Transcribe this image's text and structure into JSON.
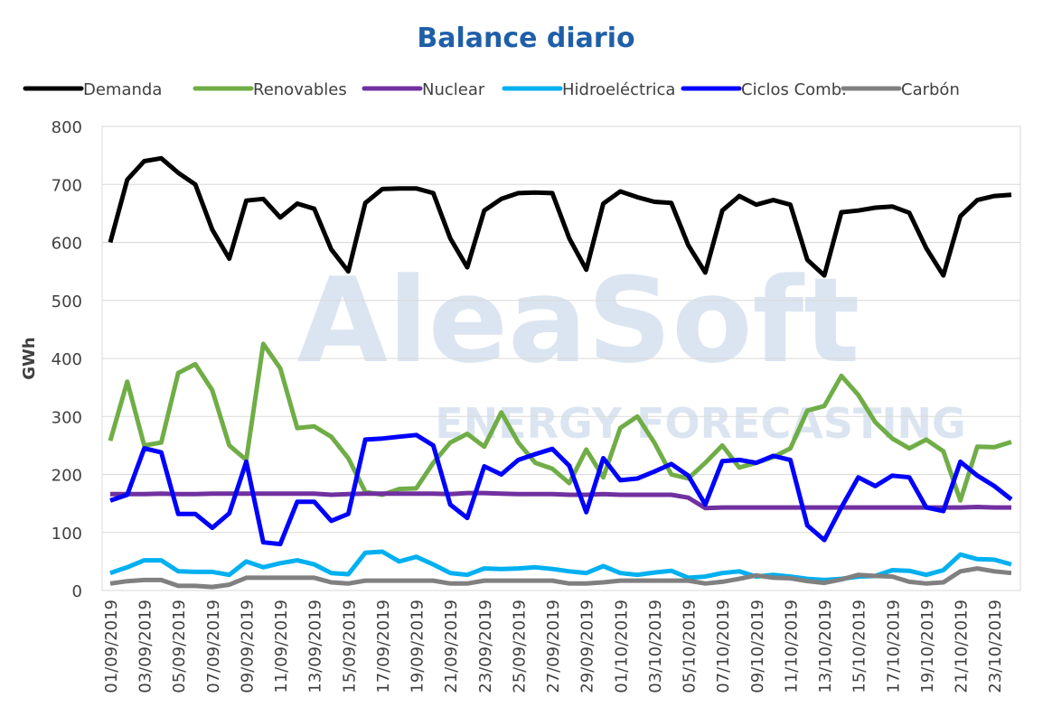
{
  "chart_data": {
    "type": "line",
    "title": "Balance diario",
    "y_label": "GWh",
    "annotations": [
      "AleaSoft",
      "ENERGY FORECASTING"
    ],
    "categories": [
      "01/09/2019",
      null,
      "03/09/2019",
      null,
      "05/09/2019",
      null,
      "07/09/2019",
      null,
      "09/09/2019",
      null,
      "11/09/2019",
      null,
      "13/09/2019",
      null,
      "15/09/2019",
      null,
      "17/09/2019",
      null,
      "19/09/2019",
      null,
      "21/09/2019",
      null,
      "23/09/2019",
      null,
      "25/09/2019",
      null,
      "27/09/2019",
      null,
      "29/09/2019",
      null,
      "01/10/2019",
      null,
      "03/10/2019",
      null,
      "05/10/2019",
      null,
      "07/10/2019",
      null,
      "09/10/2019",
      null,
      "11/10/2019",
      null,
      "13/10/2019",
      null,
      "15/10/2019",
      null,
      "17/10/2019",
      null,
      "19/10/2019",
      null,
      "21/10/2019",
      null,
      "23/10/2019",
      null
    ],
    "series": [
      {
        "name": "Demanda",
        "color": "#000000",
        "values": [
          600,
          708,
          740,
          745,
          720,
          700,
          622,
          572,
          672,
          675,
          643,
          667,
          658,
          588,
          550,
          668,
          692,
          693,
          693,
          685,
          607,
          557,
          655,
          675,
          685,
          686,
          685,
          607,
          553,
          667,
          688,
          678,
          670,
          668,
          595,
          548,
          655,
          680,
          665,
          673,
          665,
          570,
          543,
          652,
          655,
          660,
          662,
          651,
          590,
          543,
          645,
          673,
          680,
          682
        ]
      },
      {
        "name": "Renovables",
        "color": "#70ad47",
        "values": [
          258,
          360,
          250,
          255,
          375,
          390,
          345,
          250,
          225,
          425,
          383,
          280,
          283,
          265,
          228,
          170,
          165,
          175,
          176,
          220,
          255,
          270,
          248,
          307,
          255,
          220,
          210,
          185,
          243,
          195,
          280,
          300,
          255,
          200,
          193,
          220,
          250,
          212,
          220,
          230,
          245,
          310,
          318,
          370,
          337,
          290,
          262,
          245,
          260,
          240,
          155,
          248,
          247,
          256
        ]
      },
      {
        "name": "Nuclear",
        "color": "#7030a0",
        "values": [
          166,
          166,
          166,
          167,
          166,
          166,
          167,
          167,
          167,
          167,
          167,
          167,
          167,
          165,
          166,
          167,
          167,
          167,
          167,
          167,
          166,
          168,
          168,
          167,
          166,
          166,
          166,
          165,
          165,
          166,
          165,
          165,
          165,
          165,
          160,
          142,
          143,
          143,
          143,
          143,
          143,
          143,
          143,
          143,
          143,
          143,
          143,
          143,
          143,
          143,
          143,
          144,
          143,
          143
        ]
      },
      {
        "name": "Hidroeléctrica",
        "color": "#00b0f0",
        "values": [
          30,
          40,
          52,
          52,
          33,
          32,
          32,
          27,
          50,
          40,
          47,
          52,
          45,
          30,
          28,
          65,
          67,
          50,
          58,
          45,
          30,
          27,
          38,
          37,
          38,
          40,
          37,
          33,
          30,
          42,
          30,
          27,
          31,
          34,
          22,
          24,
          30,
          33,
          24,
          27,
          24,
          20,
          18,
          20,
          24,
          25,
          35,
          34,
          27,
          35,
          62,
          54,
          53,
          45
        ]
      },
      {
        "name": "Ciclos Comb.",
        "color": "#0000ff",
        "values": [
          155,
          165,
          245,
          238,
          132,
          132,
          108,
          133,
          222,
          83,
          80,
          153,
          153,
          120,
          132,
          260,
          262,
          265,
          268,
          250,
          148,
          125,
          214,
          200,
          225,
          235,
          244,
          215,
          135,
          228,
          190,
          193,
          205,
          218,
          198,
          148,
          223,
          225,
          220,
          232,
          225,
          112,
          87,
          143,
          195,
          180,
          198,
          195,
          143,
          137,
          222,
          198,
          180,
          157
        ]
      },
      {
        "name": "Carbón",
        "color": "#808080",
        "values": [
          12,
          16,
          18,
          18,
          8,
          8,
          6,
          10,
          22,
          22,
          22,
          22,
          22,
          14,
          12,
          17,
          17,
          17,
          17,
          17,
          12,
          12,
          17,
          17,
          17,
          17,
          17,
          12,
          12,
          14,
          17,
          17,
          17,
          17,
          17,
          12,
          15,
          20,
          26,
          22,
          21,
          16,
          13,
          19,
          27,
          25,
          24,
          15,
          12,
          14,
          33,
          38,
          33,
          30
        ]
      }
    ],
    "ylim": [
      0,
      800
    ],
    "yticks": [
      0,
      100,
      200,
      300,
      400,
      500,
      600,
      700,
      800
    ],
    "grid": true
  }
}
